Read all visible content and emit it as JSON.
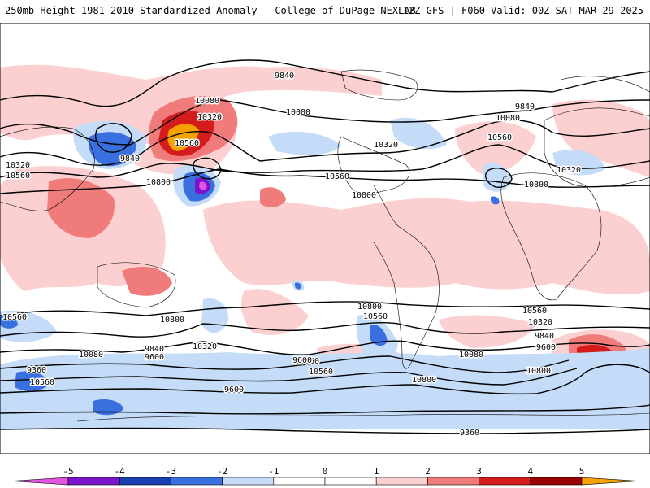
{
  "header": {
    "left": "250mb Height 1981-2010 Standardized Anomaly | College of DuPage NEXLAB",
    "right": "12Z GFS | F060 Valid: 00Z SAT MAR 29 2025"
  },
  "contour_labels": [
    {
      "id": "c1",
      "text": "9840"
    },
    {
      "id": "c2",
      "text": "10080"
    },
    {
      "id": "c3",
      "text": "10320"
    },
    {
      "id": "c4",
      "text": "10560"
    },
    {
      "id": "c5",
      "text": "9840"
    },
    {
      "id": "c6",
      "text": "10320"
    },
    {
      "id": "c7",
      "text": "10560"
    },
    {
      "id": "c8",
      "text": "10800"
    },
    {
      "id": "c9",
      "text": "10080"
    },
    {
      "id": "c10",
      "text": "10320"
    },
    {
      "id": "c11",
      "text": "10560"
    },
    {
      "id": "c12",
      "text": "10800"
    },
    {
      "id": "c13",
      "text": "9840"
    },
    {
      "id": "c14",
      "text": "10080"
    },
    {
      "id": "c15",
      "text": "10560"
    },
    {
      "id": "c16",
      "text": "10320"
    },
    {
      "id": "c17",
      "text": "10800"
    },
    {
      "id": "c18",
      "text": "10560"
    },
    {
      "id": "c19",
      "text": "10800"
    },
    {
      "id": "c20",
      "text": "10800"
    },
    {
      "id": "c21",
      "text": "10560"
    },
    {
      "id": "c22",
      "text": "10560"
    },
    {
      "id": "c23",
      "text": "10320"
    },
    {
      "id": "c24",
      "text": "10080"
    },
    {
      "id": "c25",
      "text": "9840"
    },
    {
      "id": "c26",
      "text": "9600"
    },
    {
      "id": "c27",
      "text": "9360"
    },
    {
      "id": "c28",
      "text": "10560"
    },
    {
      "id": "c29",
      "text": "10320"
    },
    {
      "id": "c30",
      "text": "10080"
    },
    {
      "id": "c31",
      "text": "9840"
    },
    {
      "id": "c32",
      "text": "9600"
    },
    {
      "id": "c33",
      "text": "10800"
    },
    {
      "id": "c34",
      "text": "10560"
    },
    {
      "id": "c35",
      "text": "10320"
    },
    {
      "id": "c36",
      "text": "9600"
    },
    {
      "id": "c37",
      "text": "10800"
    },
    {
      "id": "c38",
      "text": "10560"
    },
    {
      "id": "c39",
      "text": "10080"
    },
    {
      "id": "c40",
      "text": "9840"
    },
    {
      "id": "c41",
      "text": "9600"
    },
    {
      "id": "c42",
      "text": "9360"
    }
  ],
  "colorbar": {
    "ticks": [
      "-5",
      "-4",
      "-3",
      "-2",
      "-1",
      "0",
      "1",
      "2",
      "3",
      "4",
      "5"
    ],
    "colors": [
      "#e255e2",
      "#7b14c8",
      "#1a3fb0",
      "#3a6fe0",
      "#c5dcf8",
      "#ffffff",
      "#ffffff",
      "#fcd0d0",
      "#f07b7b",
      "#d41c1c",
      "#9a0000",
      "#f5a200"
    ]
  },
  "anomaly_colors": {
    "pos1": "#fcd0d0",
    "pos2": "#f07b7b",
    "pos3": "#d41c1c",
    "pos4": "#9a0000",
    "pos5": "#f5a200",
    "neg1": "#c5dcf8",
    "neg2": "#3a6fe0",
    "neg3": "#1a3fb0",
    "neg4": "#7b14c8",
    "neg5": "#e255e2"
  }
}
